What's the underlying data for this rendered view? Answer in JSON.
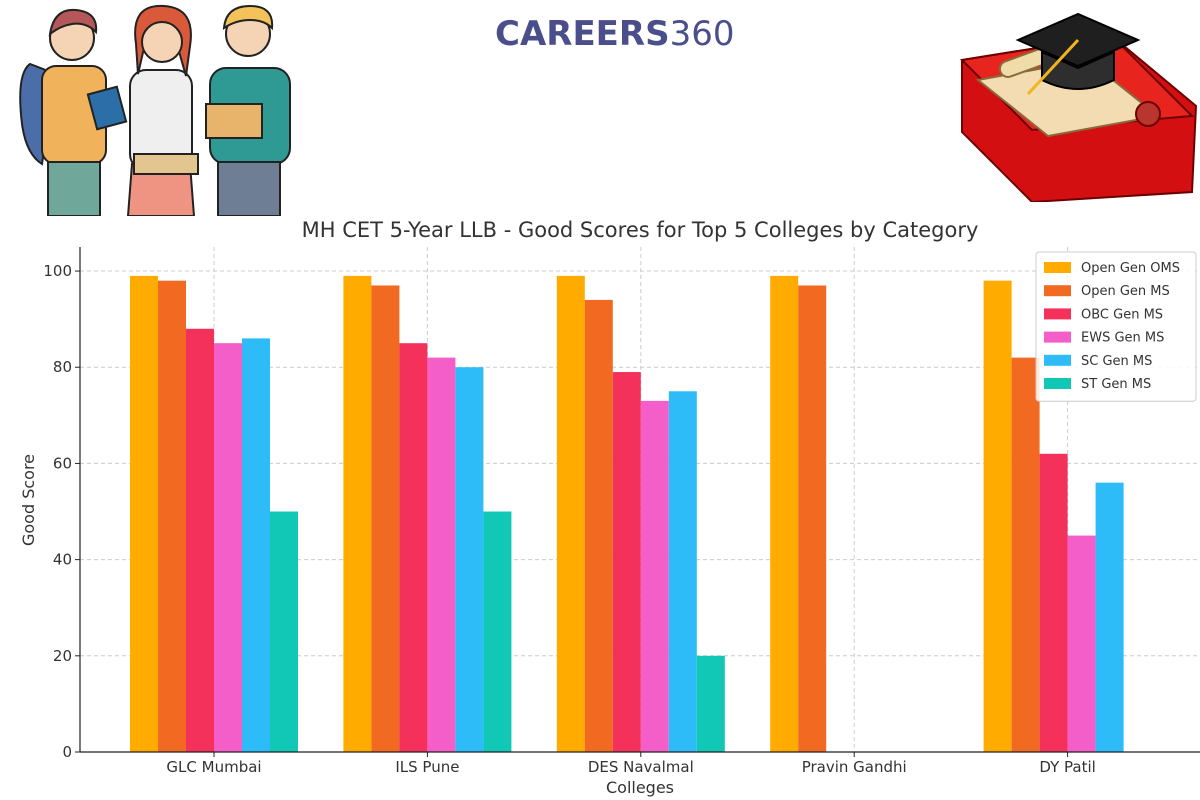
{
  "logo": {
    "brand": "CAREERS",
    "number": "360"
  },
  "colors": {
    "series": [
      "#ffab00",
      "#f26a22",
      "#f3315a",
      "#f45ec8",
      "#2dbcf7",
      "#10c8b5"
    ],
    "grid": "#cccccc",
    "text": "#333333"
  },
  "chart_data": {
    "type": "bar",
    "title": "MH CET 5-Year LLB - Good Scores for Top 5 Colleges by Category",
    "xlabel": "Colleges",
    "ylabel": "Good Score",
    "ylim": [
      0,
      105
    ],
    "yticks": [
      0,
      20,
      40,
      60,
      80,
      100
    ],
    "grid": true,
    "legend_position": "top-right",
    "categories": [
      "GLC Mumbai",
      "ILS Pune",
      "DES Navalmal",
      "Pravin Gandhi",
      "DY Patil"
    ],
    "series": [
      {
        "name": "Open Gen OMS",
        "values": [
          99,
          99,
          99,
          99,
          98
        ]
      },
      {
        "name": "Open Gen MS",
        "values": [
          98,
          97,
          94,
          97,
          82
        ]
      },
      {
        "name": "OBC Gen MS",
        "values": [
          88,
          85,
          79,
          null,
          62
        ]
      },
      {
        "name": "EWS Gen MS",
        "values": [
          85,
          82,
          73,
          null,
          45
        ]
      },
      {
        "name": "SC Gen MS",
        "values": [
          86,
          80,
          75,
          null,
          56
        ]
      },
      {
        "name": "ST Gen MS",
        "values": [
          50,
          50,
          20,
          null,
          null
        ]
      }
    ]
  }
}
